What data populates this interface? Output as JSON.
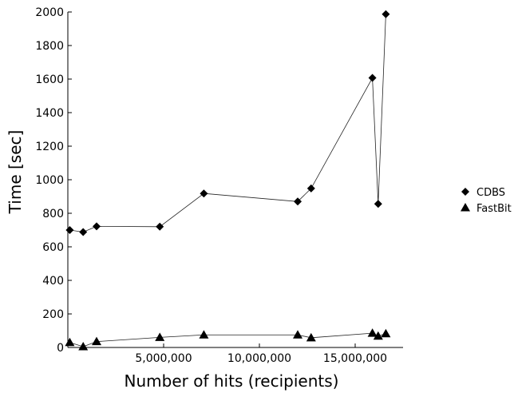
{
  "chart_data": {
    "type": "scatter",
    "title": "",
    "xlabel": "Number of hits (recipients)",
    "ylabel": "Time [sec]",
    "xlim": [
      0,
      17500000
    ],
    "ylim": [
      0,
      2000
    ],
    "xticks": [
      5000000,
      10000000,
      15000000
    ],
    "xtick_labels": [
      "5,000,000",
      "10,000,000",
      "15,000,000"
    ],
    "yticks": [
      0,
      200,
      400,
      600,
      800,
      1000,
      1200,
      1400,
      1600,
      1800,
      2000
    ],
    "ytick_labels": [
      "0",
      "200",
      "400",
      "600",
      "800",
      "1000",
      "1200",
      "1400",
      "1600",
      "1800",
      "2000"
    ],
    "grid": false,
    "legend_position": "right",
    "series": [
      {
        "name": "CDBS",
        "marker": "diamond",
        "color": "#000000",
        "points": [
          {
            "x": 100000,
            "y": 700
          },
          {
            "x": 800000,
            "y": 688
          },
          {
            "x": 1500000,
            "y": 722
          },
          {
            "x": 4800000,
            "y": 720
          },
          {
            "x": 7100000,
            "y": 918
          },
          {
            "x": 12000000,
            "y": 870
          },
          {
            "x": 12700000,
            "y": 948
          },
          {
            "x": 15900000,
            "y": 1607
          },
          {
            "x": 16200000,
            "y": 856
          },
          {
            "x": 16600000,
            "y": 1987
          }
        ]
      },
      {
        "name": "FastBit",
        "marker": "triangle",
        "color": "#000000",
        "points": [
          {
            "x": 100000,
            "y": 30
          },
          {
            "x": 800000,
            "y": 5
          },
          {
            "x": 1500000,
            "y": 35
          },
          {
            "x": 4800000,
            "y": 60
          },
          {
            "x": 7100000,
            "y": 75
          },
          {
            "x": 12000000,
            "y": 75
          },
          {
            "x": 12700000,
            "y": 58
          },
          {
            "x": 15900000,
            "y": 85
          },
          {
            "x": 16200000,
            "y": 68
          },
          {
            "x": 16600000,
            "y": 82
          }
        ]
      }
    ]
  }
}
